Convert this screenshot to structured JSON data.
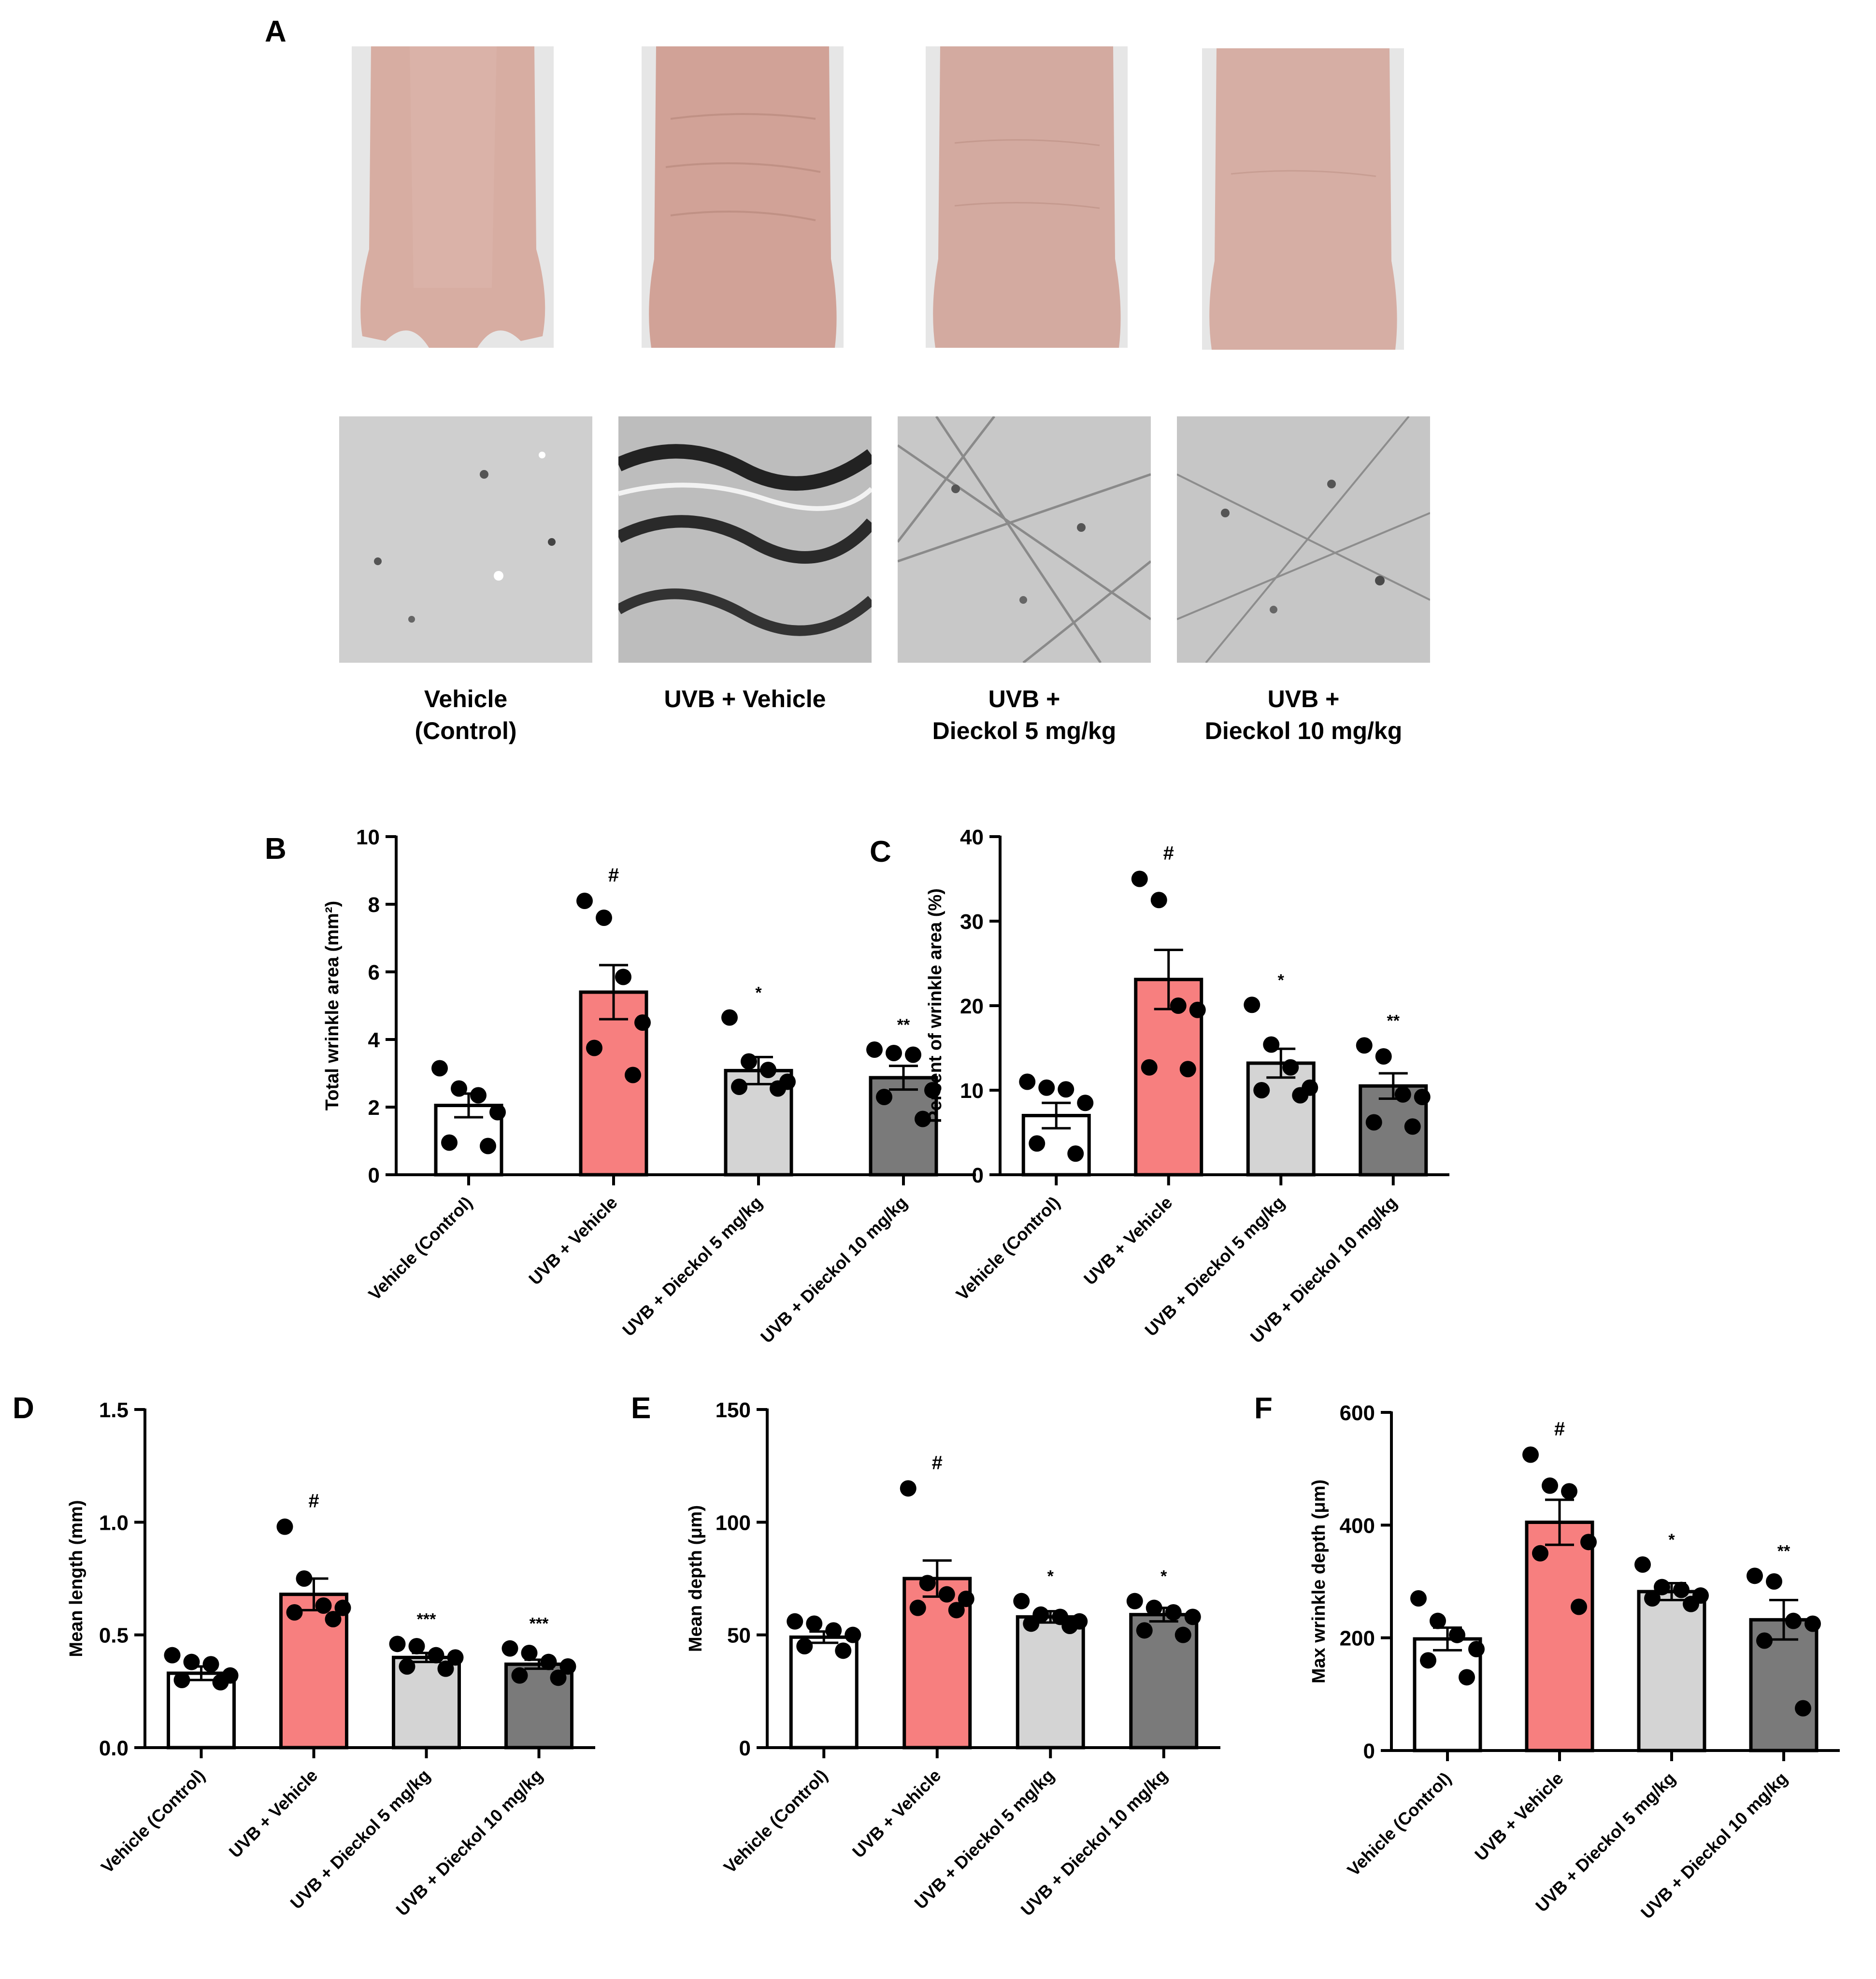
{
  "panel_labels": {
    "A": "A",
    "B": "B",
    "C": "C",
    "D": "D",
    "E": "E",
    "F": "F"
  },
  "photo_captions": [
    {
      "line1": "Vehicle",
      "line2": "(Control)"
    },
    {
      "line1": "UVB + Vehicle",
      "line2": ""
    },
    {
      "line1": "UVB +",
      "line2": "Dieckol 5 mg/kg"
    },
    {
      "line1": "UVB +",
      "line2": "Dieckol 10 mg/kg"
    }
  ],
  "colors": {
    "control": "#ffffff",
    "uvb_vehicle": "#f77f7f",
    "dieckol_5": "#d4d4d4",
    "dieckol_10": "#7a7a7a",
    "skin": "#d8b0a6",
    "stroke": "#000000"
  },
  "chart_data": [
    {
      "id": "B",
      "type": "bar",
      "categories": [
        "Vehicle (Control)",
        "UVB + Vehicle",
        "UVB + Dieckol 5 mg/kg",
        "UVB + Dieckol 10 mg/kg"
      ],
      "values": [
        2.05,
        5.4,
        3.08,
        2.87
      ],
      "sem": [
        0.35,
        0.8,
        0.4,
        0.35
      ],
      "points": [
        [
          3.15,
          2.55,
          2.35,
          1.85,
          0.95,
          0.85
        ],
        [
          8.1,
          7.6,
          5.85,
          4.5,
          3.75,
          2.95
        ],
        [
          4.65,
          3.35,
          3.1,
          2.75,
          2.6,
          2.55
        ],
        [
          3.7,
          3.6,
          3.55,
          2.5,
          2.3,
          1.65
        ]
      ],
      "significance": [
        "",
        "#",
        "*",
        "**"
      ],
      "ylabel": "Total wrinkle area (mm²)",
      "ylim": [
        0,
        10
      ],
      "yticks": [
        "0",
        "2",
        "4",
        "6",
        "8",
        "10"
      ]
    },
    {
      "id": "C",
      "type": "bar",
      "categories": [
        "Vehicle (Control)",
        "UVB + Vehicle",
        "UVB + Dieckol 5 mg/kg",
        "UVB + Dieckol 10 mg/kg"
      ],
      "values": [
        7.0,
        23.1,
        13.2,
        10.5
      ],
      "sem": [
        1.5,
        3.5,
        1.7,
        1.5
      ],
      "points": [
        [
          11.0,
          10.3,
          10.1,
          8.5,
          3.7,
          2.5
        ],
        [
          35.0,
          32.5,
          20.0,
          19.5,
          12.7,
          12.5
        ],
        [
          20.1,
          15.4,
          12.7,
          10.3,
          10.0,
          9.4
        ],
        [
          15.3,
          14.0,
          9.5,
          9.2,
          6.2,
          5.7
        ]
      ],
      "significance": [
        "",
        "#",
        "*",
        "**"
      ],
      "ylabel": "Percent of wrinkle area (%)",
      "ylim": [
        0,
        40
      ],
      "yticks": [
        "0",
        "10",
        "20",
        "30",
        "40"
      ]
    },
    {
      "id": "D",
      "type": "bar",
      "categories": [
        "Vehicle (Control)",
        "UVB + Vehicle",
        "UVB + Dieckol 5 mg/kg",
        "UVB + Dieckol 10 mg/kg"
      ],
      "values": [
        0.33,
        0.68,
        0.4,
        0.37
      ],
      "sem": [
        0.03,
        0.07,
        0.02,
        0.02
      ],
      "points": [
        [
          0.41,
          0.38,
          0.37,
          0.32,
          0.3,
          0.29
        ],
        [
          0.98,
          0.75,
          0.63,
          0.62,
          0.6,
          0.57
        ],
        [
          0.46,
          0.45,
          0.41,
          0.4,
          0.36,
          0.35
        ],
        [
          0.44,
          0.42,
          0.38,
          0.36,
          0.32,
          0.31
        ]
      ],
      "significance": [
        "",
        "#",
        "***",
        "***"
      ],
      "ylabel": "Mean length (mm)",
      "ylim": [
        0,
        1.5
      ],
      "yticks": [
        "0.0",
        "0.5",
        "1.0",
        "1.5"
      ]
    },
    {
      "id": "E",
      "type": "bar",
      "categories": [
        "Vehicle (Control)",
        "UVB + Vehicle",
        "UVB + Dieckol 5 mg/kg",
        "UVB + Dieckol 10 mg/kg"
      ],
      "values": [
        49,
        75,
        58,
        59
      ],
      "sem": [
        2.5,
        8,
        2.5,
        3
      ],
      "points": [
        [
          56,
          55,
          52,
          50,
          45,
          43
        ],
        [
          115,
          73,
          68,
          66,
          62,
          61
        ],
        [
          65,
          59,
          58,
          56,
          55,
          54
        ],
        [
          65,
          62,
          60,
          58,
          52,
          50
        ]
      ],
      "significance": [
        "",
        "#",
        "*",
        "*"
      ],
      "ylabel": "Mean depth (μm)",
      "ylim": [
        0,
        150
      ],
      "yticks": [
        "0",
        "50",
        "100",
        "150"
      ]
    },
    {
      "id": "F",
      "type": "bar",
      "categories": [
        "Vehicle (Control)",
        "UVB + Vehicle",
        "UVB + Dieckol 5 mg/kg",
        "UVB + Dieckol 10 mg/kg"
      ],
      "values": [
        198,
        405,
        282,
        232
      ],
      "sem": [
        20,
        40,
        15,
        35
      ],
      "points": [
        [
          270,
          230,
          205,
          180,
          160,
          130
        ],
        [
          525,
          470,
          460,
          370,
          350,
          255
        ],
        [
          330,
          290,
          285,
          275,
          270,
          260
        ],
        [
          310,
          300,
          230,
          225,
          195,
          75
        ]
      ],
      "significance": [
        "",
        "#",
        "*",
        "**"
      ],
      "ylabel": "Max wrinkle depth (μm)",
      "ylim": [
        0,
        600
      ],
      "yticks": [
        "0",
        "200",
        "400",
        "600"
      ]
    }
  ]
}
